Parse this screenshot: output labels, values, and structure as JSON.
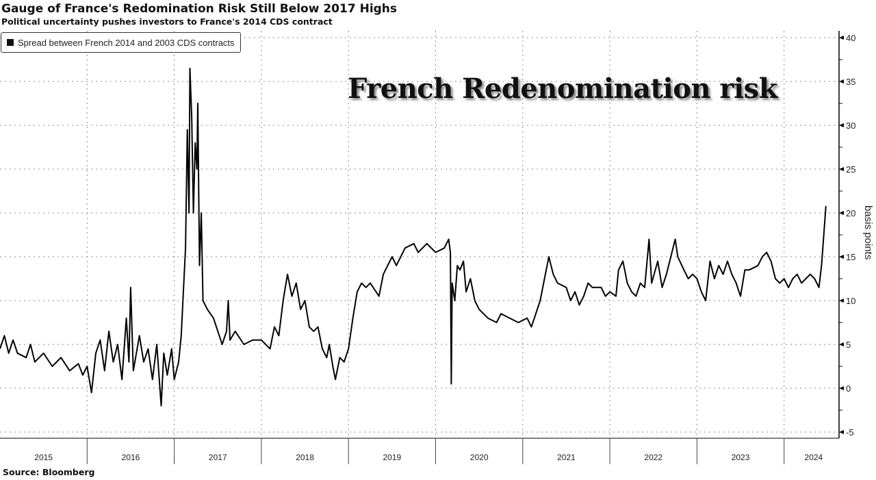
{
  "header": {
    "title": "Gauge of France's Redomination Risk Still Below 2017 Highs",
    "subtitle": "Political uncertainty pushes investors to France's 2014 CDS contract"
  },
  "annotation": "French Redenomination risk",
  "source": "Source: Bloomberg",
  "chart_data": {
    "type": "line",
    "title": "Gauge of France's Redomination Risk Still Below 2017 Highs",
    "ylabel": "basis points",
    "xlabel": "",
    "ylim": [
      -5,
      40
    ],
    "xlim": [
      2015,
      2024.6
    ],
    "yticks": [
      -5,
      0,
      5,
      10,
      15,
      20,
      25,
      30,
      35,
      40
    ],
    "xtick_labels": [
      "2015",
      "2016",
      "2017",
      "2018",
      "2019",
      "2020",
      "2021",
      "2022",
      "2023",
      "2024"
    ],
    "grid": true,
    "legend_position": "top-left",
    "line_color": "#000000",
    "series": [
      {
        "name": "Spread between French 2014 and 2003 CDS contracts",
        "x": [
          2015.0,
          2015.05,
          2015.1,
          2015.15,
          2015.2,
          2015.3,
          2015.35,
          2015.4,
          2015.5,
          2015.6,
          2015.7,
          2015.8,
          2015.9,
          2015.95,
          2016.0,
          2016.05,
          2016.1,
          2016.15,
          2016.2,
          2016.25,
          2016.3,
          2016.35,
          2016.4,
          2016.45,
          2016.48,
          2016.5,
          2016.53,
          2016.6,
          2016.65,
          2016.7,
          2016.75,
          2016.8,
          2016.85,
          2016.88,
          2016.92,
          2016.97,
          2017.0,
          2017.05,
          2017.08,
          2017.1,
          2017.13,
          2017.15,
          2017.17,
          2017.18,
          2017.2,
          2017.22,
          2017.24,
          2017.26,
          2017.27,
          2017.29,
          2017.31,
          2017.33,
          2017.38,
          2017.45,
          2017.5,
          2017.55,
          2017.6,
          2017.62,
          2017.64,
          2017.7,
          2017.8,
          2017.9,
          2018.0,
          2018.1,
          2018.15,
          2018.2,
          2018.25,
          2018.3,
          2018.35,
          2018.4,
          2018.45,
          2018.5,
          2018.55,
          2018.6,
          2018.65,
          2018.7,
          2018.75,
          2018.78,
          2018.82,
          2018.85,
          2018.9,
          2018.95,
          2019.0,
          2019.05,
          2019.1,
          2019.15,
          2019.2,
          2019.25,
          2019.35,
          2019.4,
          2019.5,
          2019.55,
          2019.65,
          2019.75,
          2019.8,
          2019.9,
          2020.0,
          2020.1,
          2020.15,
          2020.17,
          2020.18,
          2020.19,
          2020.22,
          2020.25,
          2020.28,
          2020.32,
          2020.35,
          2020.4,
          2020.45,
          2020.5,
          2020.6,
          2020.7,
          2020.75,
          2020.85,
          2020.95,
          2021.05,
          2021.1,
          2021.15,
          2021.2,
          2021.25,
          2021.3,
          2021.35,
          2021.4,
          2021.5,
          2021.55,
          2021.6,
          2021.65,
          2021.7,
          2021.75,
          2021.8,
          2021.9,
          2021.95,
          2022.0,
          2022.07,
          2022.1,
          2022.15,
          2022.2,
          2022.25,
          2022.3,
          2022.35,
          2022.4,
          2022.45,
          2022.48,
          2022.55,
          2022.6,
          2022.65,
          2022.7,
          2022.75,
          2022.78,
          2022.85,
          2022.9,
          2022.95,
          2023.0,
          2023.05,
          2023.1,
          2023.15,
          2023.2,
          2023.25,
          2023.3,
          2023.35,
          2023.4,
          2023.45,
          2023.5,
          2023.55,
          2023.6,
          2023.7,
          2023.75,
          2023.8,
          2023.85,
          2023.9,
          2023.95,
          2024.0,
          2024.05,
          2024.1,
          2024.15,
          2024.2,
          2024.25,
          2024.3,
          2024.35,
          2024.4,
          2024.43,
          2024.48
        ],
        "values": [
          4.5,
          6,
          4,
          5.5,
          4,
          3.5,
          5,
          3,
          4,
          2.5,
          3.5,
          2,
          2.8,
          1.5,
          2.5,
          -0.5,
          4,
          5.5,
          2,
          6.5,
          3,
          5,
          1,
          8,
          3,
          11.5,
          2,
          6,
          3,
          4.5,
          1,
          5,
          -2,
          4,
          1.5,
          4.5,
          1,
          3,
          6,
          10,
          16,
          29.5,
          20,
          36.5,
          31,
          20,
          28,
          25,
          32.5,
          14,
          20,
          10,
          9,
          8,
          6.5,
          5,
          6.5,
          10,
          5.5,
          6.5,
          5,
          5.5,
          5.5,
          4.5,
          7,
          6,
          10,
          13,
          10.5,
          12,
          9,
          10,
          7,
          6.5,
          7,
          4.5,
          3.5,
          5,
          2.5,
          1,
          3.5,
          3,
          4.5,
          8,
          11,
          12,
          11.5,
          12,
          10.5,
          13,
          15,
          14,
          16,
          16.5,
          15.5,
          16.5,
          15.5,
          16,
          17,
          15.5,
          0.5,
          12,
          10,
          14,
          13.5,
          14.5,
          11,
          12.5,
          10,
          9,
          8,
          7.5,
          8.5,
          8,
          7.5,
          8,
          7,
          8.5,
          10,
          12.5,
          15,
          13,
          12,
          11.5,
          10,
          11,
          9.5,
          10.5,
          12,
          11.5,
          11.5,
          10.5,
          11,
          10.5,
          13.5,
          14.5,
          12,
          11,
          10.5,
          12,
          11.5,
          17,
          12,
          14.5,
          11.5,
          13,
          15,
          17,
          15,
          13.5,
          12.5,
          13,
          12.5,
          11,
          10,
          14.5,
          12.5,
          14,
          13,
          14.5,
          13,
          12,
          10.5,
          13.5,
          13.5,
          14,
          15,
          15.5,
          14.5,
          12.5,
          12,
          12.5,
          11.5,
          12.5,
          13,
          12,
          12.5,
          13,
          12.5,
          11.5,
          14,
          20.8
        ]
      }
    ]
  }
}
